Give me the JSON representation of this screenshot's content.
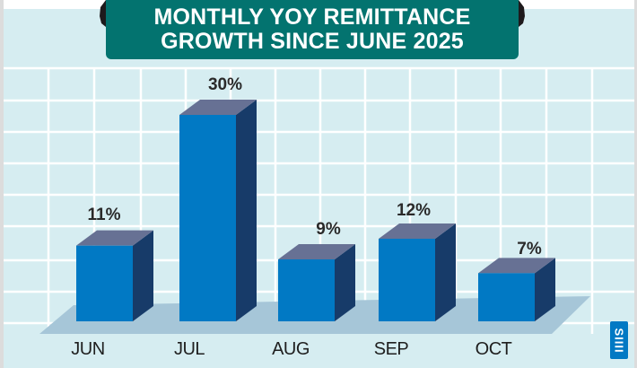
{
  "title": {
    "line1": "MONTHLY YOY REMITTANCE",
    "line2": "GROWTH SINCE JUNE 2025"
  },
  "colors": {
    "banner": "#03736F",
    "background": "#D6EDF1",
    "grid": "#FFFFFF",
    "floor": "#A6C6D8",
    "bar_front": "#0179C4",
    "bar_side": "#173B69",
    "bar_top": "#677194",
    "ornament": "#1E1A1C",
    "logo": "#0179C4"
  },
  "chart_data": {
    "type": "bar",
    "title": "MONTHLY YOY REMITTANCE GROWTH SINCE JUNE 2025",
    "categories": [
      "JUN",
      "JUL",
      "AUG",
      "SEP",
      "OCT"
    ],
    "values": [
      11,
      30,
      9,
      12,
      7
    ],
    "value_labels": [
      "11%",
      "30%",
      "9%",
      "12%",
      "7%"
    ],
    "unit": "%",
    "xlabel": "",
    "ylabel": "",
    "grid": true,
    "style": "3d-bar"
  },
  "logo": {
    "text": "SIIII"
  }
}
